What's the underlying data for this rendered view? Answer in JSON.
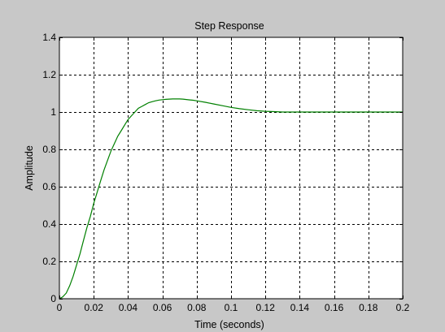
{
  "chart_data": {
    "type": "line",
    "title": "Step Response",
    "xlabel": "Time (seconds)",
    "ylabel": "Amplitude",
    "xlim": [
      0,
      0.2
    ],
    "ylim": [
      0,
      1.4
    ],
    "grid": true,
    "x_ticks": [
      0,
      0.02,
      0.04,
      0.06,
      0.08,
      0.1,
      0.12,
      0.14,
      0.16,
      0.18,
      0.2
    ],
    "x_tick_labels": [
      "0",
      "0.02",
      "0.04",
      "0.06",
      "0.08",
      "0.1",
      "0.12",
      "0.14",
      "0.16",
      "0.18",
      "0.2"
    ],
    "y_ticks": [
      0,
      0.2,
      0.4,
      0.6,
      0.8,
      1,
      1.2,
      1.4
    ],
    "y_tick_labels": [
      "0",
      "0.2",
      "0.4",
      "0.6",
      "0.8",
      "1",
      "1.2",
      "1.4"
    ],
    "series": [
      {
        "color": "#008000",
        "x": [
          0,
          0.002,
          0.004,
          0.006,
          0.008,
          0.01,
          0.012,
          0.014,
          0.016,
          0.018,
          0.02,
          0.022,
          0.024,
          0.026,
          0.028,
          0.03,
          0.032,
          0.034,
          0.036,
          0.038,
          0.04,
          0.042,
          0.044,
          0.046,
          0.048,
          0.05,
          0.052,
          0.054,
          0.056,
          0.058,
          0.06,
          0.062,
          0.064,
          0.066,
          0.068,
          0.07,
          0.072,
          0.074,
          0.076,
          0.078,
          0.08,
          0.085,
          0.09,
          0.095,
          0.1,
          0.105,
          0.11,
          0.115,
          0.12,
          0.125,
          0.13,
          0.14,
          0.15,
          0.16,
          0.17,
          0.18,
          0.19,
          0.2
        ],
        "y": [
          0,
          0.01,
          0.03,
          0.07,
          0.12,
          0.18,
          0.24,
          0.31,
          0.38,
          0.44,
          0.51,
          0.57,
          0.63,
          0.69,
          0.74,
          0.79,
          0.83,
          0.87,
          0.9,
          0.93,
          0.96,
          0.98,
          1.0,
          1.02,
          1.03,
          1.04,
          1.05,
          1.055,
          1.06,
          1.064,
          1.066,
          1.068,
          1.069,
          1.07,
          1.07,
          1.07,
          1.069,
          1.067,
          1.065,
          1.063,
          1.06,
          1.052,
          1.043,
          1.034,
          1.025,
          1.018,
          1.012,
          1.007,
          1.004,
          1.002,
          1.0,
          1.0,
          1.0,
          1.0,
          1.0,
          1.0,
          1.0,
          1.0
        ]
      }
    ]
  }
}
